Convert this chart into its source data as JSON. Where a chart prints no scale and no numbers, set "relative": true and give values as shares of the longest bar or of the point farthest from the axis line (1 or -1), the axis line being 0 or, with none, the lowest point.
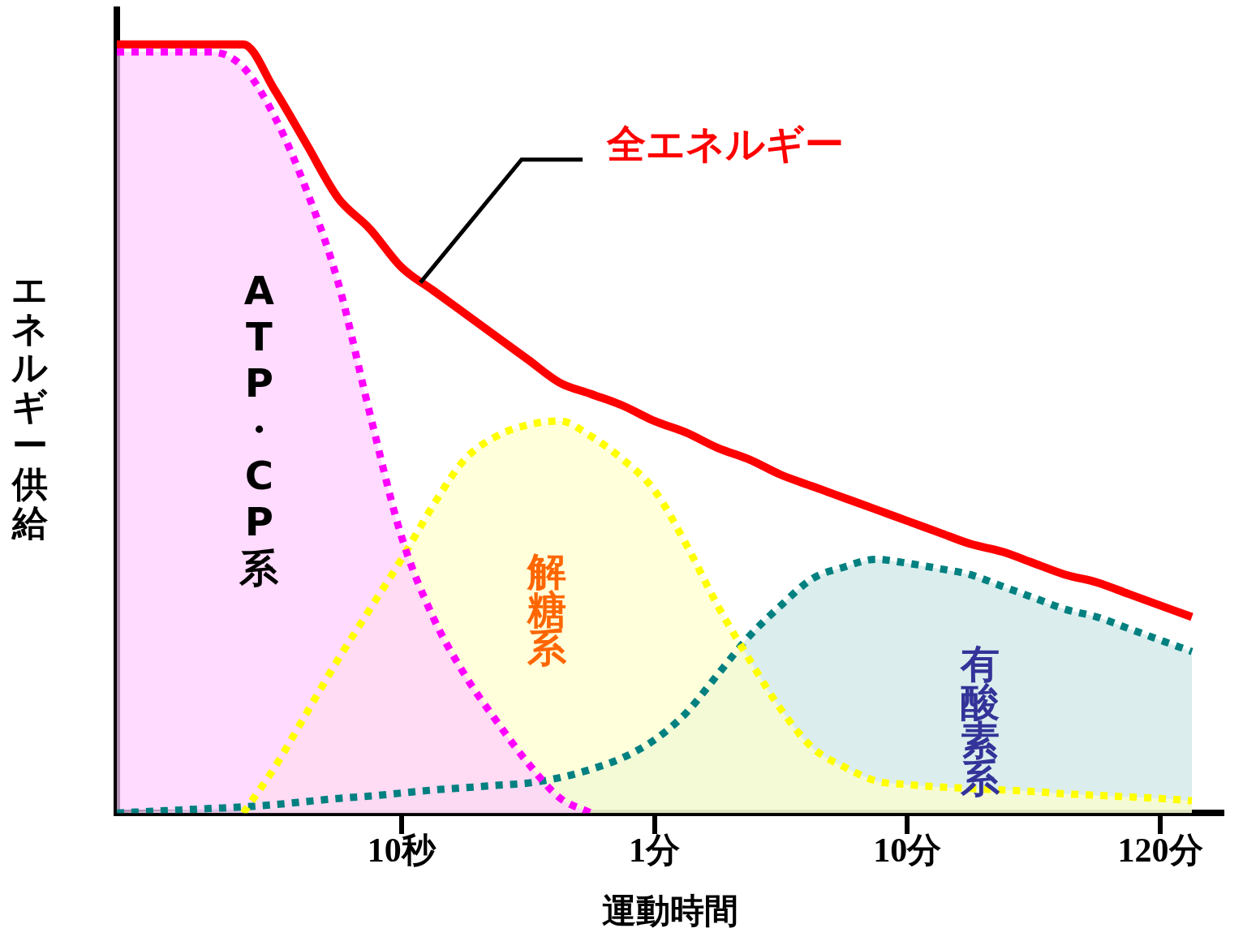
{
  "chart_data": {
    "type": "area",
    "xlabel": "運動時間",
    "ylabel": "エネルギー供給",
    "relative": true,
    "categories": [
      null,
      null,
      null,
      null,
      null,
      null,
      null,
      null,
      null,
      "10秒",
      null,
      null,
      null,
      null,
      null,
      null,
      null,
      "1分",
      null,
      null,
      null,
      null,
      null,
      null,
      null,
      "10分",
      null,
      null,
      null,
      null,
      null,
      null,
      null,
      "120分",
      null,
      null
    ],
    "tick_labels": "x",
    "legend": false,
    "marker": "none",
    "series": [
      {
        "name": "ATP・CP系",
        "color": "#ff00ff",
        "line_style": "dotted",
        "values": [
          0.99,
          0.99,
          0.99,
          0.99,
          0.97,
          0.905,
          0.81,
          0.69,
          0.52,
          0.36,
          0.255,
          0.18,
          0.12,
          0.065,
          0.02,
          0,
          null,
          null,
          null,
          null,
          null,
          null,
          null,
          null,
          null,
          null,
          null,
          null,
          null,
          null,
          null,
          null,
          null,
          null,
          null,
          null
        ]
      },
      {
        "name": "解糖系",
        "color": "#ffff00",
        "line_style": "dotted",
        "values": [
          null,
          null,
          null,
          null,
          0,
          0.06,
          0.13,
          0.2,
          0.265,
          0.33,
          0.4,
          0.46,
          0.49,
          0.505,
          0.51,
          0.49,
          0.46,
          0.42,
          0.35,
          0.27,
          0.2,
          0.135,
          0.085,
          0.06,
          0.042,
          0.037,
          0.034,
          0.032,
          0.03,
          0.028,
          0.025,
          0.023,
          0.021,
          0.019,
          0.016,
          null
        ]
      },
      {
        "name": "有酸素系",
        "color": "#008080",
        "line_style": "dotted",
        "values": [
          0,
          0.002,
          0.004,
          0.006,
          0.008,
          0.011,
          0.015,
          0.019,
          0.022,
          0.026,
          0.03,
          0.033,
          0.036,
          0.039,
          0.046,
          0.057,
          0.072,
          0.095,
          0.13,
          0.18,
          0.23,
          0.27,
          0.305,
          0.32,
          0.33,
          0.325,
          0.318,
          0.31,
          0.295,
          0.28,
          0.265,
          0.255,
          0.24,
          0.225,
          0.21,
          null
        ]
      },
      {
        "name": "全エネルギー",
        "type": "line",
        "color": "#ff0000",
        "line_style": "solid",
        "values": [
          1,
          1,
          1,
          1,
          1,
          0.94,
          0.87,
          0.8,
          0.76,
          0.71,
          0.68,
          0.65,
          0.62,
          0.59,
          0.56,
          0.545,
          0.53,
          0.51,
          0.495,
          0.475,
          0.46,
          0.44,
          0.425,
          0.41,
          0.395,
          0.38,
          0.365,
          0.35,
          0.34,
          0.325,
          0.31,
          0.3,
          0.285,
          0.27,
          0.255,
          null
        ]
      }
    ]
  }
}
